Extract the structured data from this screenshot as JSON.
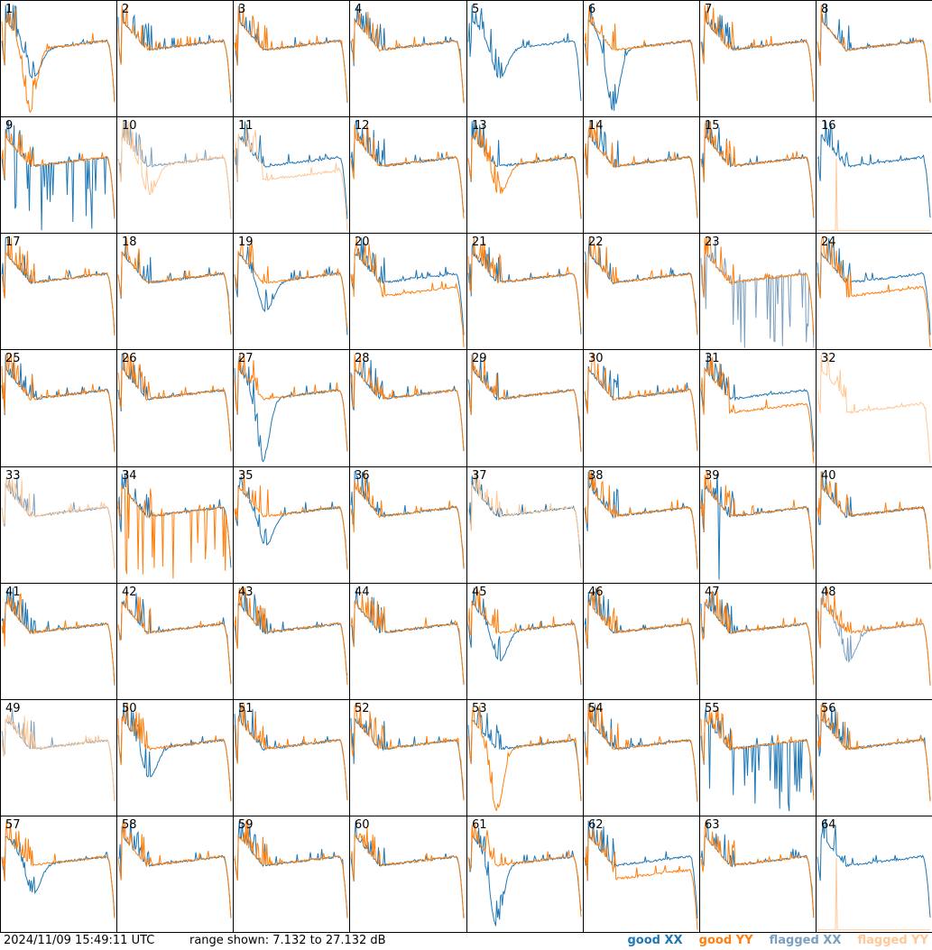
{
  "footer": {
    "timestamp": "2024/11/09 15:49:11 UTC",
    "range": "range shown: 7.132 to 27.132 dB"
  },
  "legend": {
    "good_xx": "good XX",
    "good_yy": "good YY",
    "flagged_xx": "flagged XX",
    "flagged_yy": "flagged YY"
  },
  "colors": {
    "good_xx": "#1f77b4",
    "good_yy": "#ff7f0e",
    "flagged_xx": "#7a9fc0",
    "flagged_yy": "#ffc896"
  },
  "chart_data": {
    "type": "line",
    "title": "",
    "ylim": [
      7.132,
      27.132
    ],
    "y_unit": "dB",
    "panels": [
      {
        "label": "1",
        "xx": "good",
        "yy": "good",
        "xx_shape": "drop",
        "yy_shape": "deepdrop"
      },
      {
        "label": "2",
        "xx": "good",
        "yy": "good",
        "xx_shape": "normal",
        "yy_shape": "normal"
      },
      {
        "label": "3",
        "xx": "good",
        "yy": "good",
        "xx_shape": "normal",
        "yy_shape": "normal"
      },
      {
        "label": "4",
        "xx": "good",
        "yy": "good",
        "xx_shape": "normal",
        "yy_shape": "normal"
      },
      {
        "label": "5",
        "xx": "good",
        "yy": "absent",
        "xx_shape": "drop",
        "yy_shape": "normal"
      },
      {
        "label": "6",
        "xx": "good",
        "yy": "good",
        "xx_shape": "deepdrop",
        "yy_shape": "normal"
      },
      {
        "label": "7",
        "xx": "good",
        "yy": "good",
        "xx_shape": "normal",
        "yy_shape": "normal"
      },
      {
        "label": "8",
        "xx": "good",
        "yy": "good",
        "xx_shape": "normal",
        "yy_shape": "normal"
      },
      {
        "label": "9",
        "xx": "good",
        "yy": "good",
        "xx_shape": "spiky",
        "yy_shape": "normal"
      },
      {
        "label": "10",
        "xx": "flagged",
        "yy": "flagged",
        "xx_shape": "normal",
        "yy_shape": "drop"
      },
      {
        "label": "11",
        "xx": "good",
        "yy": "flagged",
        "xx_shape": "normal",
        "yy_shape": "lower"
      },
      {
        "label": "12",
        "xx": "good",
        "yy": "good",
        "xx_shape": "normal",
        "yy_shape": "normal"
      },
      {
        "label": "13",
        "xx": "good",
        "yy": "good",
        "xx_shape": "normal",
        "yy_shape": "drop"
      },
      {
        "label": "14",
        "xx": "good",
        "yy": "good",
        "xx_shape": "normal",
        "yy_shape": "normal"
      },
      {
        "label": "15",
        "xx": "good",
        "yy": "good",
        "xx_shape": "normal",
        "yy_shape": "normal"
      },
      {
        "label": "16",
        "xx": "good",
        "yy": "flagged",
        "xx_shape": "normal",
        "yy_shape": "flat"
      },
      {
        "label": "17",
        "xx": "good",
        "yy": "good",
        "xx_shape": "normal",
        "yy_shape": "normal"
      },
      {
        "label": "18",
        "xx": "good",
        "yy": "good",
        "xx_shape": "normal",
        "yy_shape": "normal"
      },
      {
        "label": "19",
        "xx": "good",
        "yy": "good",
        "xx_shape": "drop",
        "yy_shape": "normal"
      },
      {
        "label": "20",
        "xx": "good",
        "yy": "good",
        "xx_shape": "normal",
        "yy_shape": "lower"
      },
      {
        "label": "21",
        "xx": "good",
        "yy": "good",
        "xx_shape": "normal",
        "yy_shape": "normal"
      },
      {
        "label": "22",
        "xx": "good",
        "yy": "good",
        "xx_shape": "normal",
        "yy_shape": "normal"
      },
      {
        "label": "23",
        "xx": "flagged",
        "yy": "good",
        "xx_shape": "spiky",
        "yy_shape": "normal"
      },
      {
        "label": "24",
        "xx": "good",
        "yy": "good",
        "xx_shape": "normal",
        "yy_shape": "lower"
      },
      {
        "label": "25",
        "xx": "good",
        "yy": "good",
        "xx_shape": "normal",
        "yy_shape": "normal"
      },
      {
        "label": "26",
        "xx": "good",
        "yy": "good",
        "xx_shape": "normal",
        "yy_shape": "normal"
      },
      {
        "label": "27",
        "xx": "good",
        "yy": "good",
        "xx_shape": "deepdrop",
        "yy_shape": "normal"
      },
      {
        "label": "28",
        "xx": "good",
        "yy": "good",
        "xx_shape": "normal",
        "yy_shape": "normal"
      },
      {
        "label": "29",
        "xx": "good",
        "yy": "good",
        "xx_shape": "normal",
        "yy_shape": "normal"
      },
      {
        "label": "30",
        "xx": "good",
        "yy": "good",
        "xx_shape": "normal",
        "yy_shape": "normal"
      },
      {
        "label": "31",
        "xx": "good",
        "yy": "good",
        "xx_shape": "normal",
        "yy_shape": "lower"
      },
      {
        "label": "32",
        "xx": "absent",
        "yy": "flagged",
        "xx_shape": "normal",
        "yy_shape": "lower"
      },
      {
        "label": "33",
        "xx": "flagged",
        "yy": "flagged",
        "xx_shape": "normal",
        "yy_shape": "normal"
      },
      {
        "label": "34",
        "xx": "good",
        "yy": "good",
        "xx_shape": "normal",
        "yy_shape": "spiky"
      },
      {
        "label": "35",
        "xx": "good",
        "yy": "good",
        "xx_shape": "drop",
        "yy_shape": "normal"
      },
      {
        "label": "36",
        "xx": "good",
        "yy": "good",
        "xx_shape": "normal",
        "yy_shape": "normal"
      },
      {
        "label": "37",
        "xx": "good",
        "yy": "flagged",
        "xx_shape": "normal",
        "yy_shape": "normal"
      },
      {
        "label": "38",
        "xx": "good",
        "yy": "good",
        "xx_shape": "normal",
        "yy_shape": "normal"
      },
      {
        "label": "39",
        "xx": "good",
        "yy": "good",
        "xx_shape": "spike1",
        "yy_shape": "normal"
      },
      {
        "label": "40",
        "xx": "good",
        "yy": "good",
        "xx_shape": "normal",
        "yy_shape": "normal"
      },
      {
        "label": "41",
        "xx": "good",
        "yy": "good",
        "xx_shape": "normal",
        "yy_shape": "normal"
      },
      {
        "label": "42",
        "xx": "good",
        "yy": "good",
        "xx_shape": "normal",
        "yy_shape": "normal"
      },
      {
        "label": "43",
        "xx": "good",
        "yy": "good",
        "xx_shape": "normal",
        "yy_shape": "normal"
      },
      {
        "label": "44",
        "xx": "good",
        "yy": "good",
        "xx_shape": "normal",
        "yy_shape": "normal"
      },
      {
        "label": "45",
        "xx": "good",
        "yy": "good",
        "xx_shape": "drop",
        "yy_shape": "normal"
      },
      {
        "label": "46",
        "xx": "good",
        "yy": "good",
        "xx_shape": "normal",
        "yy_shape": "normal"
      },
      {
        "label": "47",
        "xx": "good",
        "yy": "good",
        "xx_shape": "normal",
        "yy_shape": "normal"
      },
      {
        "label": "48",
        "xx": "flagged",
        "yy": "good",
        "xx_shape": "drop",
        "yy_shape": "normal"
      },
      {
        "label": "49",
        "xx": "flagged",
        "yy": "flagged",
        "xx_shape": "normal",
        "yy_shape": "normal"
      },
      {
        "label": "50",
        "xx": "good",
        "yy": "good",
        "xx_shape": "drop",
        "yy_shape": "normal"
      },
      {
        "label": "51",
        "xx": "good",
        "yy": "good",
        "xx_shape": "normal",
        "yy_shape": "normal"
      },
      {
        "label": "52",
        "xx": "good",
        "yy": "good",
        "xx_shape": "normal",
        "yy_shape": "normal"
      },
      {
        "label": "53",
        "xx": "good",
        "yy": "good",
        "xx_shape": "normal",
        "yy_shape": "deepdrop"
      },
      {
        "label": "54",
        "xx": "good",
        "yy": "good",
        "xx_shape": "normal",
        "yy_shape": "normal"
      },
      {
        "label": "55",
        "xx": "good",
        "yy": "good",
        "xx_shape": "spiky",
        "yy_shape": "normal"
      },
      {
        "label": "56",
        "xx": "good",
        "yy": "good",
        "xx_shape": "normal",
        "yy_shape": "normal"
      },
      {
        "label": "57",
        "xx": "good",
        "yy": "good",
        "xx_shape": "drop",
        "yy_shape": "normal"
      },
      {
        "label": "58",
        "xx": "good",
        "yy": "good",
        "xx_shape": "normal",
        "yy_shape": "normal"
      },
      {
        "label": "59",
        "xx": "good",
        "yy": "good",
        "xx_shape": "normal",
        "yy_shape": "normal"
      },
      {
        "label": "60",
        "xx": "good",
        "yy": "good",
        "xx_shape": "normal",
        "yy_shape": "normal"
      },
      {
        "label": "61",
        "xx": "good",
        "yy": "good",
        "xx_shape": "deepdrop",
        "yy_shape": "normal"
      },
      {
        "label": "62",
        "xx": "good",
        "yy": "good",
        "xx_shape": "normal",
        "yy_shape": "lower"
      },
      {
        "label": "63",
        "xx": "good",
        "yy": "good",
        "xx_shape": "normal",
        "yy_shape": "normal"
      },
      {
        "label": "64",
        "xx": "good",
        "yy": "flagged",
        "xx_shape": "normal",
        "yy_shape": "flat"
      }
    ]
  }
}
